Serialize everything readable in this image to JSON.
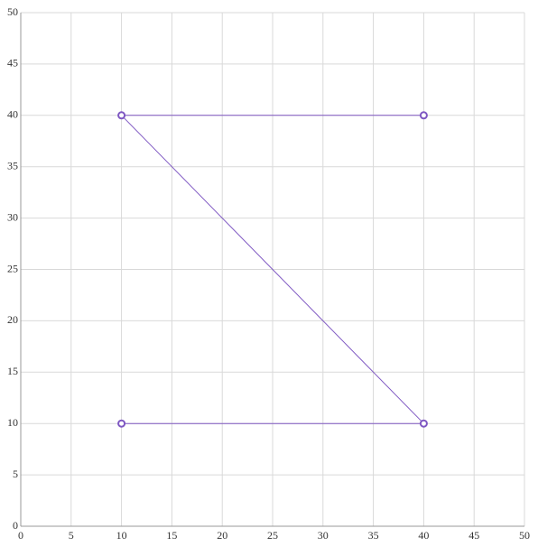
{
  "chart_data": {
    "type": "line",
    "x": [
      10,
      40,
      10,
      40
    ],
    "series": [
      {
        "color": "#7e57c2",
        "values": [
          10,
          10,
          40,
          40
        ]
      }
    ],
    "xlim": [
      0,
      50
    ],
    "xticks": [
      0,
      5,
      10,
      15,
      20,
      25,
      30,
      35,
      40,
      45,
      50
    ],
    "ylim": [
      0,
      50
    ],
    "yticks": [
      0,
      5,
      10,
      15,
      20,
      25,
      30,
      35,
      40,
      45,
      50
    ],
    "grid": true
  }
}
